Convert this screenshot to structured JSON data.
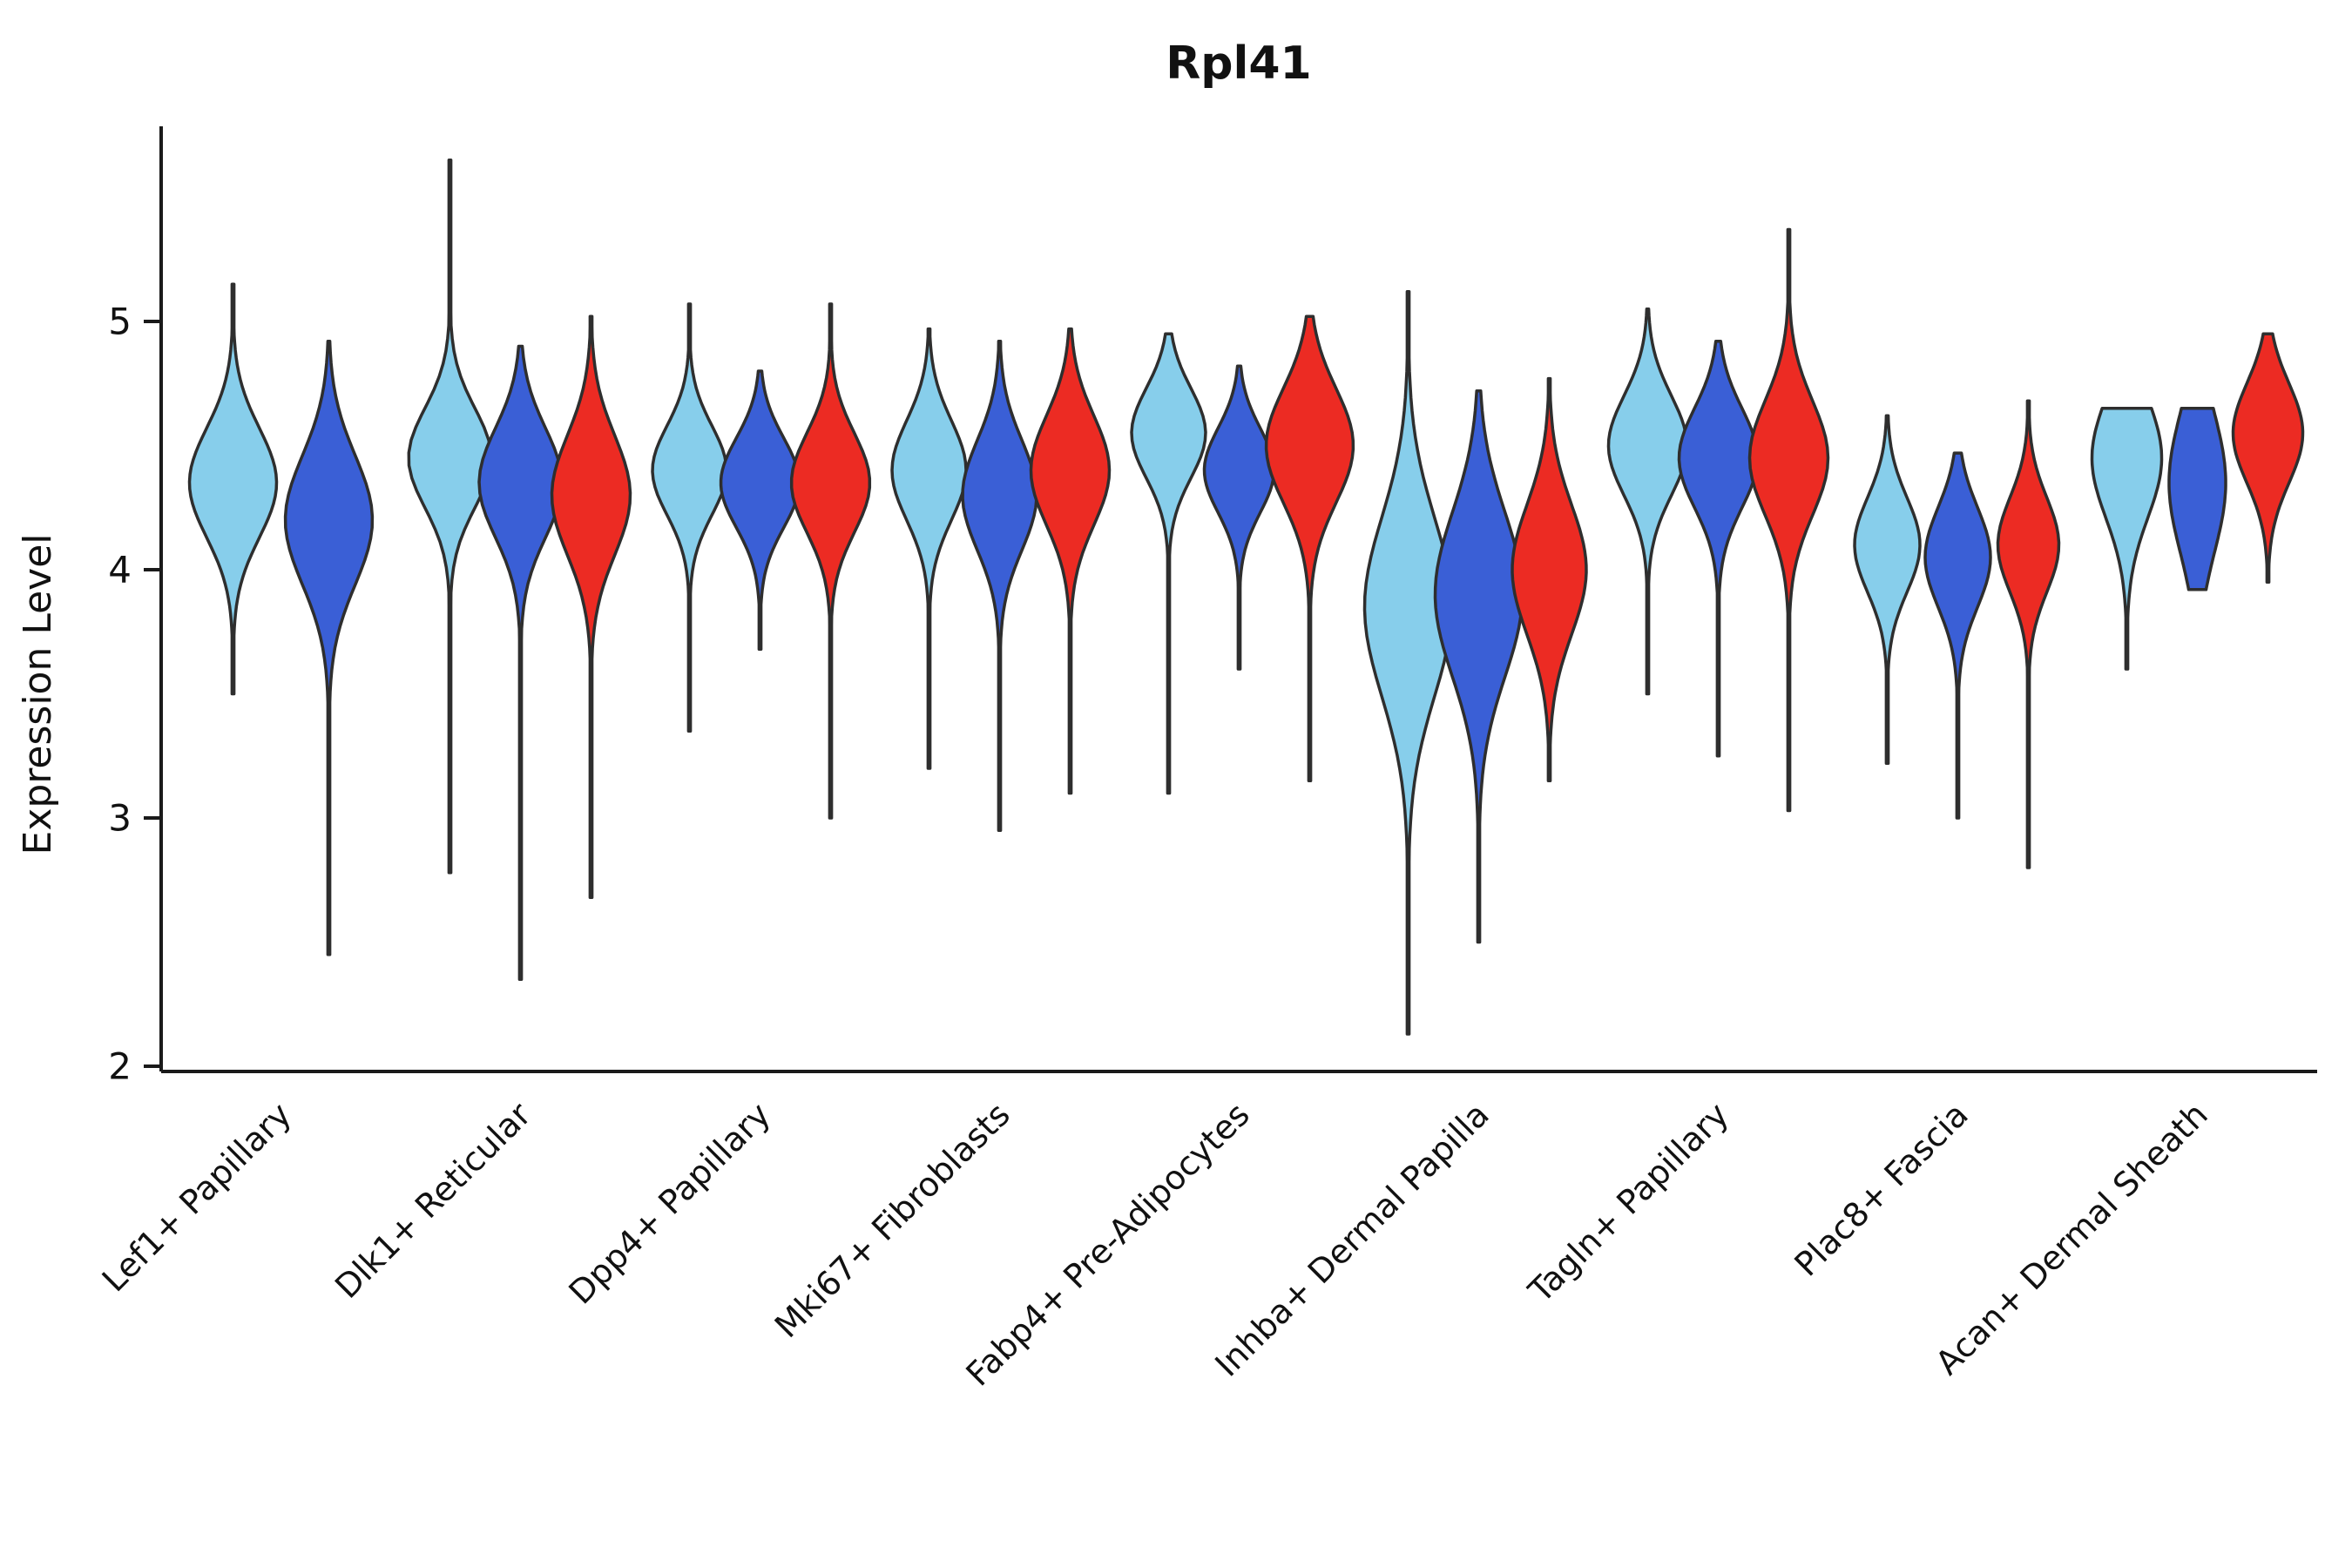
{
  "chart_data": {
    "type": "violin",
    "title": "Rpl41",
    "ylabel": "Expression Level",
    "xlabel": "",
    "ylim": [
      2,
      5.8
    ],
    "yticks": [
      2,
      3,
      4,
      5
    ],
    "grid": false,
    "legend": "none",
    "outline_color": "#2e2e2e",
    "axis_color": "#1a1a1a",
    "groups": [
      {
        "id": "group-1",
        "color": "#87CEEB"
      },
      {
        "id": "group-2",
        "color": "#3A5FD6"
      },
      {
        "id": "group-3",
        "color": "#EC2B23"
      }
    ],
    "categories": [
      "Lef1+ Papillary",
      "Dlk1+ Reticular",
      "Dpp4+ Papillary",
      "Mki67+ Fibroblasts",
      "Fabp4+ Pre-Adipocytes",
      "Inhba+ Dermal Papilla",
      "Tagln+ Papillary",
      "Plac8+ Fascia",
      "Acan+ Dermal Sheath"
    ],
    "violins": [
      {
        "cat": 0,
        "grp": 0,
        "mode": 4.35,
        "sd": 0.22,
        "min": 3.5,
        "max": 5.15,
        "w": 1.0
      },
      {
        "cat": 0,
        "grp": 1,
        "mode": 4.2,
        "sd": 0.26,
        "min": 2.45,
        "max": 4.92,
        "w": 1.0
      },
      {
        "cat": 1,
        "grp": 0,
        "mode": 4.45,
        "sd": 0.2,
        "min": 2.78,
        "max": 5.65,
        "w": 0.95
      },
      {
        "cat": 1,
        "grp": 1,
        "mode": 4.35,
        "sd": 0.22,
        "min": 2.35,
        "max": 4.9,
        "w": 0.95
      },
      {
        "cat": 1,
        "grp": 2,
        "mode": 4.3,
        "sd": 0.24,
        "min": 2.68,
        "max": 5.02,
        "w": 0.9
      },
      {
        "cat": 2,
        "grp": 0,
        "mode": 4.4,
        "sd": 0.18,
        "min": 3.35,
        "max": 5.07,
        "w": 0.85
      },
      {
        "cat": 2,
        "grp": 1,
        "mode": 4.35,
        "sd": 0.18,
        "min": 3.68,
        "max": 4.8,
        "w": 0.9
      },
      {
        "cat": 2,
        "grp": 2,
        "mode": 4.35,
        "sd": 0.2,
        "min": 3.0,
        "max": 5.07,
        "w": 0.9
      },
      {
        "cat": 3,
        "grp": 0,
        "mode": 4.4,
        "sd": 0.2,
        "min": 3.2,
        "max": 4.97,
        "w": 0.85
      },
      {
        "cat": 3,
        "grp": 1,
        "mode": 4.3,
        "sd": 0.22,
        "min": 2.95,
        "max": 4.92,
        "w": 0.85
      },
      {
        "cat": 3,
        "grp": 2,
        "mode": 4.4,
        "sd": 0.22,
        "min": 3.1,
        "max": 4.97,
        "w": 0.9
      },
      {
        "cat": 4,
        "grp": 0,
        "mode": 4.55,
        "sd": 0.18,
        "min": 3.1,
        "max": 4.95,
        "w": 0.85
      },
      {
        "cat": 4,
        "grp": 1,
        "mode": 4.4,
        "sd": 0.17,
        "min": 3.6,
        "max": 4.82,
        "w": 0.8
      },
      {
        "cat": 4,
        "grp": 2,
        "mode": 4.5,
        "sd": 0.23,
        "min": 3.15,
        "max": 5.02,
        "w": 1.0
      },
      {
        "cat": 5,
        "grp": 0,
        "mode": 3.85,
        "sd": 0.36,
        "min": 2.13,
        "max": 5.12,
        "w": 1.0
      },
      {
        "cat": 5,
        "grp": 1,
        "mode": 3.9,
        "sd": 0.33,
        "min": 2.5,
        "max": 4.72,
        "w": 1.0
      },
      {
        "cat": 5,
        "grp": 2,
        "mode": 4.0,
        "sd": 0.26,
        "min": 3.15,
        "max": 4.77,
        "w": 0.85
      },
      {
        "cat": 6,
        "grp": 0,
        "mode": 4.5,
        "sd": 0.2,
        "min": 3.5,
        "max": 5.05,
        "w": 0.9
      },
      {
        "cat": 6,
        "grp": 1,
        "mode": 4.45,
        "sd": 0.2,
        "min": 3.25,
        "max": 4.92,
        "w": 0.9
      },
      {
        "cat": 6,
        "grp": 2,
        "mode": 4.45,
        "sd": 0.23,
        "min": 3.03,
        "max": 5.37,
        "w": 0.9
      },
      {
        "cat": 7,
        "grp": 0,
        "mode": 4.1,
        "sd": 0.19,
        "min": 3.22,
        "max": 4.62,
        "w": 0.75
      },
      {
        "cat": 7,
        "grp": 1,
        "mode": 4.05,
        "sd": 0.2,
        "min": 3.0,
        "max": 4.47,
        "w": 0.75
      },
      {
        "cat": 7,
        "grp": 2,
        "mode": 4.1,
        "sd": 0.19,
        "min": 2.8,
        "max": 4.68,
        "w": 0.7
      },
      {
        "cat": 8,
        "grp": 0,
        "mode": 4.45,
        "sd": 0.24,
        "min": 3.6,
        "max": 4.65,
        "w": 0.8
      },
      {
        "cat": 8,
        "grp": 1,
        "mode": 4.35,
        "sd": 0.28,
        "min": 3.92,
        "max": 4.65,
        "w": 0.65
      },
      {
        "cat": 8,
        "grp": 2,
        "mode": 4.55,
        "sd": 0.2,
        "min": 3.95,
        "max": 4.95,
        "w": 0.8
      }
    ]
  }
}
